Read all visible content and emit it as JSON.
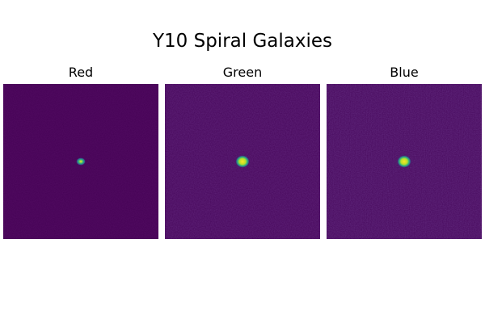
{
  "figure": {
    "title": "Y10 Spiral Galaxies"
  },
  "panels": [
    {
      "label": "Red"
    },
    {
      "label": "Green"
    },
    {
      "label": "Blue"
    }
  ],
  "colors": {
    "background": "#440154",
    "colormap": [
      "#440154",
      "#3b528b",
      "#21918c",
      "#5ec962",
      "#fde725"
    ]
  }
}
